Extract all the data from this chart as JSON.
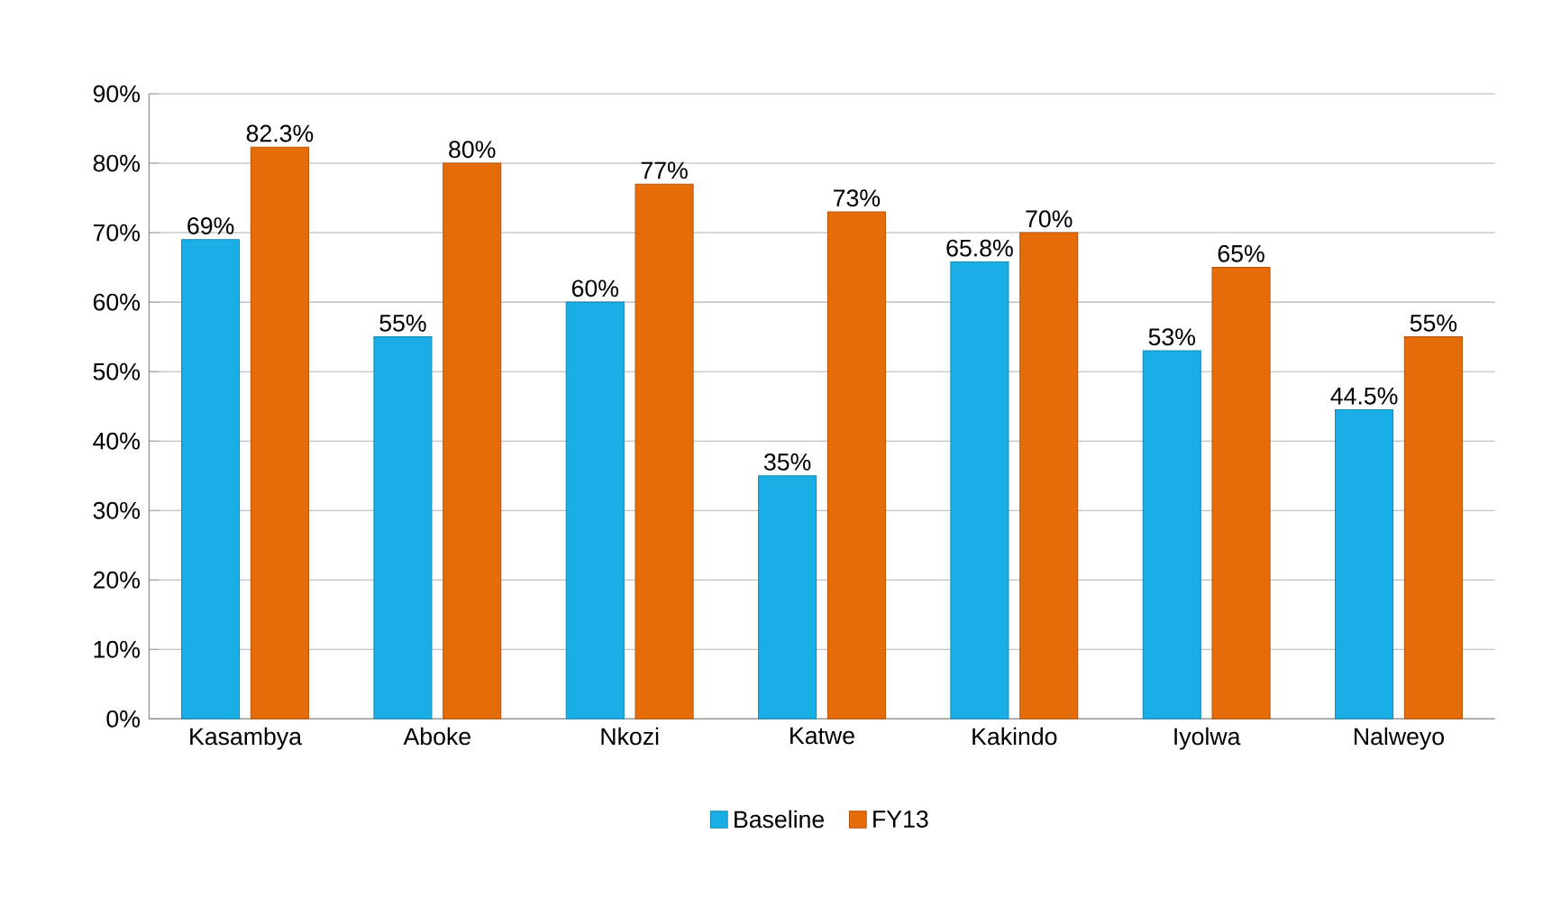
{
  "chart_data": {
    "type": "bar",
    "categories": [
      "Kasambya",
      "Aboke",
      "Nkozi",
      "Katwe",
      "Kakindo",
      "Iyolwa",
      "Nalweyo"
    ],
    "series": [
      {
        "name": "Baseline",
        "color": "#1aaee6",
        "values": [
          69,
          55,
          60,
          35,
          65.8,
          53,
          44.5
        ],
        "value_labels": [
          "69%",
          "55%",
          "60%",
          "35%",
          "65.8%",
          "53%",
          "44.5%"
        ]
      },
      {
        "name": "FY13",
        "color": "#e66c0a",
        "values": [
          82.3,
          80,
          77,
          73,
          70,
          65,
          55
        ],
        "value_labels": [
          "82.3%",
          "80%",
          "77%",
          "73%",
          "70%",
          "65%",
          "55%"
        ]
      }
    ],
    "ylim": [
      0,
      90
    ],
    "yticks": [
      {
        "value": 0,
        "label": "0%"
      },
      {
        "value": 10,
        "label": "10%"
      },
      {
        "value": 20,
        "label": "20%"
      },
      {
        "value": 30,
        "label": "30%"
      },
      {
        "value": 40,
        "label": "40%"
      },
      {
        "value": 50,
        "label": "50%"
      },
      {
        "value": 60,
        "label": "60%"
      },
      {
        "value": 70,
        "label": "70%"
      },
      {
        "value": 80,
        "label": "80%"
      },
      {
        "value": 90,
        "label": "90%"
      }
    ],
    "grid": "y",
    "legend": "bottom"
  }
}
